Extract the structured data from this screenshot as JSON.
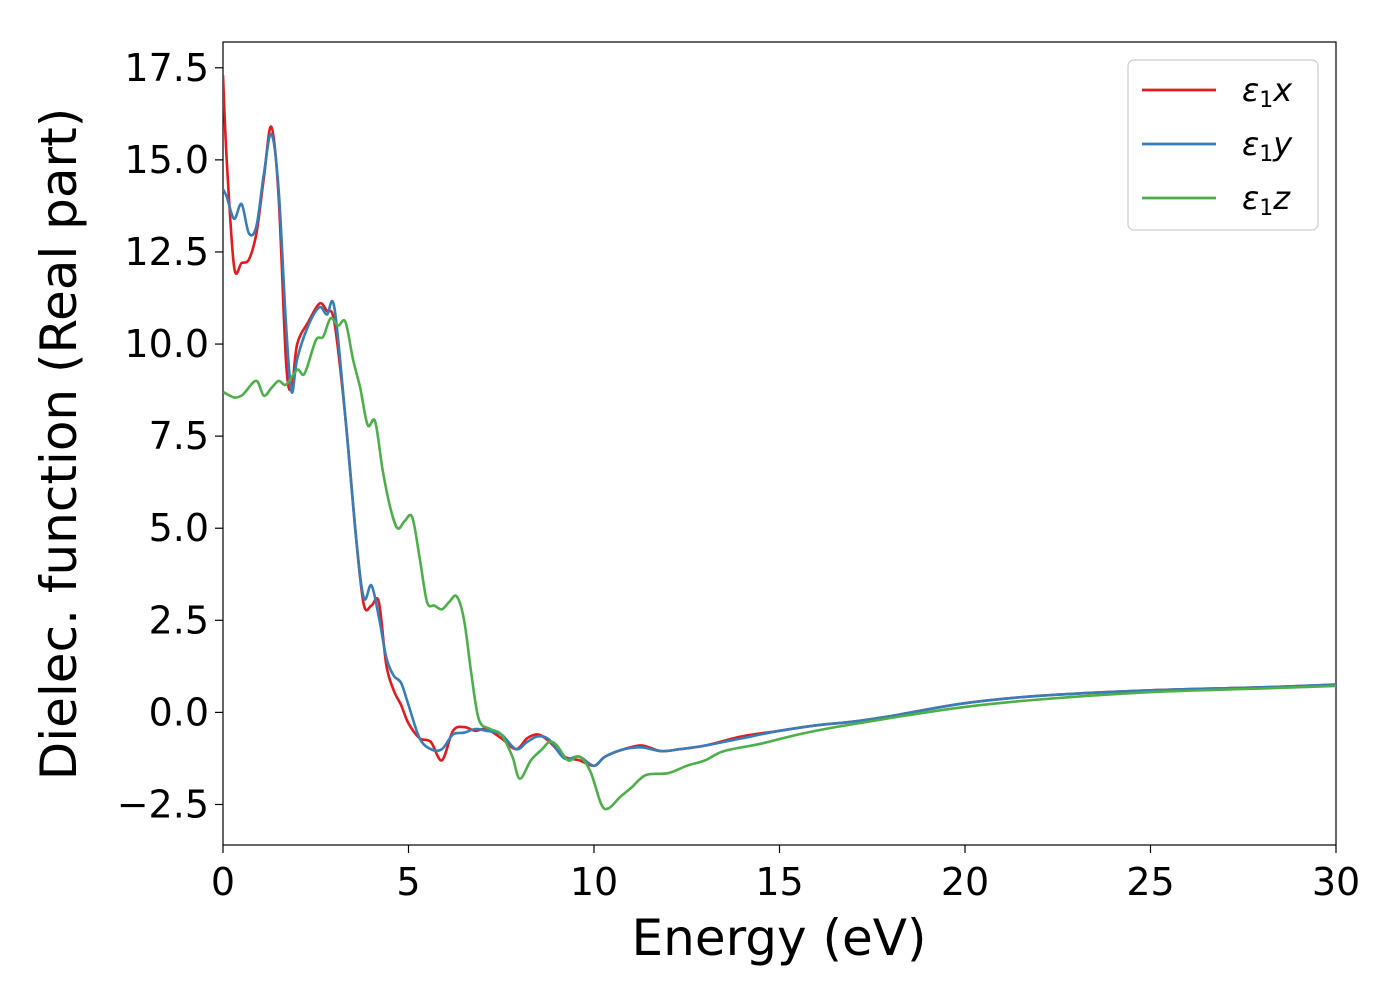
{
  "chart_data": {
    "type": "line",
    "xlabel": "Energy (eV)",
    "ylabel": "Dielec. function (Real part)",
    "xlim": [
      0,
      30
    ],
    "ylim": [
      -3.6,
      18.2
    ],
    "xticks": [
      0,
      5,
      10,
      15,
      20,
      25,
      30
    ],
    "xtick_labels": [
      "0",
      "5",
      "10",
      "15",
      "20",
      "25",
      "30"
    ],
    "yticks": [
      -2.5,
      0.0,
      2.5,
      5.0,
      7.5,
      10.0,
      12.5,
      15.0,
      17.5
    ],
    "ytick_labels": [
      "−2.5",
      "0.0",
      "2.5",
      "5.0",
      "7.5",
      "10.0",
      "12.5",
      "15.0",
      "17.5"
    ],
    "grid": false,
    "legend_position": "top-right",
    "series": [
      {
        "name": "ε1x",
        "label_main": "ε",
        "label_sub": "1",
        "label_tail": "x",
        "color": "#e41a1c",
        "x": [
          0,
          0.1,
          0.3,
          0.5,
          0.7,
          0.9,
          1.1,
          1.3,
          1.5,
          1.7,
          1.85,
          2.0,
          2.3,
          2.6,
          2.8,
          3.0,
          3.3,
          3.6,
          3.8,
          4.0,
          4.2,
          4.4,
          4.6,
          4.8,
          5.0,
          5.3,
          5.6,
          5.9,
          6.2,
          6.5,
          6.8,
          7.1,
          7.5,
          7.9,
          8.2,
          8.5,
          8.8,
          9.2,
          9.6,
          10.0,
          10.3,
          10.8,
          11.3,
          11.8,
          12.3,
          13.0,
          14.0,
          15.0,
          16.0,
          17.0,
          18.0,
          20.0,
          22.0,
          25.0,
          28.0,
          30.0
        ],
        "y": [
          17.3,
          15.0,
          12.1,
          12.2,
          12.3,
          13.0,
          14.5,
          15.9,
          14.0,
          9.5,
          8.8,
          10.0,
          10.6,
          11.1,
          10.9,
          10.6,
          8.0,
          4.6,
          2.9,
          2.9,
          3.0,
          1.3,
          0.6,
          0.2,
          -0.3,
          -0.7,
          -0.8,
          -1.3,
          -0.5,
          -0.4,
          -0.5,
          -0.45,
          -0.7,
          -1.0,
          -0.7,
          -0.6,
          -0.8,
          -1.2,
          -1.3,
          -1.45,
          -1.2,
          -1.0,
          -0.9,
          -1.05,
          -1.0,
          -0.9,
          -0.65,
          -0.5,
          -0.35,
          -0.25,
          -0.1,
          0.25,
          0.45,
          0.6,
          0.68,
          0.75
        ]
      },
      {
        "name": "ε1y",
        "label_main": "ε",
        "label_sub": "1",
        "label_tail": "y",
        "color": "#377eb8",
        "x": [
          0,
          0.1,
          0.3,
          0.5,
          0.7,
          0.9,
          1.1,
          1.3,
          1.5,
          1.7,
          1.85,
          2.0,
          2.3,
          2.6,
          2.8,
          3.0,
          3.3,
          3.6,
          3.8,
          4.0,
          4.2,
          4.4,
          4.6,
          4.8,
          5.0,
          5.3,
          5.6,
          5.9,
          6.2,
          6.5,
          6.8,
          7.1,
          7.5,
          7.9,
          8.2,
          8.5,
          8.8,
          9.2,
          9.6,
          10.0,
          10.3,
          10.8,
          11.3,
          11.8,
          12.3,
          13.0,
          14.0,
          15.0,
          16.0,
          17.0,
          18.0,
          20.0,
          22.0,
          25.0,
          28.0,
          30.0
        ],
        "y": [
          14.2,
          14.0,
          13.4,
          13.8,
          13.0,
          13.2,
          14.6,
          15.7,
          14.2,
          10.5,
          8.7,
          9.6,
          10.5,
          11.0,
          10.8,
          11.0,
          8.0,
          4.6,
          3.1,
          3.45,
          2.6,
          1.5,
          1.0,
          0.8,
          0.2,
          -0.7,
          -1.0,
          -1.0,
          -0.6,
          -0.55,
          -0.45,
          -0.5,
          -0.6,
          -1.0,
          -0.8,
          -0.65,
          -0.75,
          -1.25,
          -1.2,
          -1.45,
          -1.2,
          -1.0,
          -0.95,
          -1.05,
          -1.0,
          -0.9,
          -0.7,
          -0.5,
          -0.35,
          -0.25,
          -0.1,
          0.25,
          0.45,
          0.6,
          0.68,
          0.76
        ]
      },
      {
        "name": "ε1z",
        "label_main": "ε",
        "label_sub": "1",
        "label_tail": "z",
        "color": "#4daf4a",
        "x": [
          0,
          0.3,
          0.5,
          0.6,
          0.9,
          1.1,
          1.3,
          1.5,
          1.7,
          2.0,
          2.2,
          2.5,
          2.7,
          2.9,
          3.1,
          3.3,
          3.5,
          3.7,
          3.9,
          4.1,
          4.3,
          4.5,
          4.7,
          4.9,
          5.1,
          5.3,
          5.5,
          5.7,
          5.9,
          6.1,
          6.3,
          6.5,
          6.7,
          6.9,
          7.2,
          7.5,
          7.8,
          8.0,
          8.3,
          8.6,
          8.8,
          9.0,
          9.3,
          9.6,
          9.9,
          10.2,
          10.4,
          10.7,
          11.0,
          11.4,
          12.0,
          12.5,
          13.0,
          13.5,
          14.5,
          15.5,
          16.5,
          18.0,
          20.0,
          22.0,
          25.0,
          28.0,
          30.0
        ],
        "y": [
          8.7,
          8.55,
          8.6,
          8.7,
          9.0,
          8.6,
          8.8,
          9.0,
          8.9,
          9.3,
          9.2,
          10.1,
          10.2,
          10.7,
          10.5,
          10.6,
          9.6,
          8.8,
          7.8,
          7.9,
          6.6,
          5.6,
          5.0,
          5.2,
          5.3,
          4.2,
          3.0,
          2.9,
          2.8,
          3.0,
          3.15,
          2.5,
          1.0,
          -0.2,
          -0.45,
          -0.6,
          -1.2,
          -1.8,
          -1.3,
          -1.0,
          -0.8,
          -0.9,
          -1.3,
          -1.2,
          -1.6,
          -2.5,
          -2.6,
          -2.3,
          -2.05,
          -1.7,
          -1.65,
          -1.45,
          -1.3,
          -1.05,
          -0.85,
          -0.6,
          -0.4,
          -0.15,
          0.15,
          0.35,
          0.55,
          0.65,
          0.72
        ]
      }
    ]
  }
}
